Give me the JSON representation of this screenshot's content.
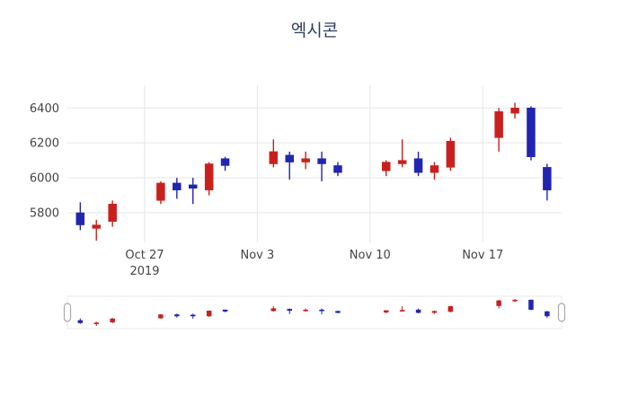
{
  "chart_data": {
    "type": "candlestick",
    "title": "엑시콘",
    "legend": "none",
    "grid": "on",
    "colors": {
      "increasing": "#c9201d",
      "decreasing": "#2125b0",
      "grid": "#e5e5e5",
      "tick_text": "#444444",
      "title_text": "#2a3f5f",
      "slider_handle_stroke": "#a9a9a9",
      "slider_border": "#e8e8e8"
    },
    "x_axis": {
      "range_days": [
        -0.8,
        29.9
      ],
      "ticks": [
        {
          "date": "2019-10-27",
          "label": "Oct 27",
          "sublabel": "2019"
        },
        {
          "date": "2019-11-03",
          "label": "Nov 3"
        },
        {
          "date": "2019-11-10",
          "label": "Nov 10"
        },
        {
          "date": "2019-11-17",
          "label": "Nov 17"
        }
      ]
    },
    "y_axis": {
      "range": [
        5630,
        6530
      ],
      "ticks": [
        5800,
        6000,
        6200,
        6400
      ]
    },
    "candles": [
      {
        "date": "2019-10-23",
        "open": 5800,
        "high": 5860,
        "low": 5700,
        "close": 5730
      },
      {
        "date": "2019-10-24",
        "open": 5710,
        "high": 5760,
        "low": 5640,
        "close": 5730
      },
      {
        "date": "2019-10-25",
        "open": 5750,
        "high": 5870,
        "low": 5720,
        "close": 5850
      },
      {
        "date": "2019-10-28",
        "open": 5870,
        "high": 5980,
        "low": 5850,
        "close": 5970
      },
      {
        "date": "2019-10-29",
        "open": 5970,
        "high": 6000,
        "low": 5880,
        "close": 5930
      },
      {
        "date": "2019-10-30",
        "open": 5960,
        "high": 6000,
        "low": 5850,
        "close": 5940
      },
      {
        "date": "2019-10-31",
        "open": 5930,
        "high": 6090,
        "low": 5900,
        "close": 6080
      },
      {
        "date": "2019-11-01",
        "open": 6110,
        "high": 6120,
        "low": 6040,
        "close": 6070
      },
      {
        "date": "2019-11-04",
        "open": 6080,
        "high": 6220,
        "low": 6060,
        "close": 6150
      },
      {
        "date": "2019-11-05",
        "open": 6130,
        "high": 6150,
        "low": 5990,
        "close": 6090
      },
      {
        "date": "2019-11-06",
        "open": 6090,
        "high": 6150,
        "low": 6050,
        "close": 6110
      },
      {
        "date": "2019-11-07",
        "open": 6110,
        "high": 6150,
        "low": 5980,
        "close": 6080
      },
      {
        "date": "2019-11-08",
        "open": 6070,
        "high": 6090,
        "low": 6010,
        "close": 6030
      },
      {
        "date": "2019-11-11",
        "open": 6040,
        "high": 6100,
        "low": 6010,
        "close": 6090
      },
      {
        "date": "2019-11-12",
        "open": 6080,
        "high": 6220,
        "low": 6060,
        "close": 6100
      },
      {
        "date": "2019-11-13",
        "open": 6110,
        "high": 6150,
        "low": 6010,
        "close": 6030
      },
      {
        "date": "2019-11-14",
        "open": 6030,
        "high": 6090,
        "low": 5990,
        "close": 6070
      },
      {
        "date": "2019-11-15",
        "open": 6060,
        "high": 6230,
        "low": 6040,
        "close": 6210
      },
      {
        "date": "2019-11-18",
        "open": 6230,
        "high": 6400,
        "low": 6150,
        "close": 6380
      },
      {
        "date": "2019-11-19",
        "open": 6370,
        "high": 6430,
        "low": 6340,
        "close": 6400
      },
      {
        "date": "2019-11-20",
        "open": 6400,
        "high": 6410,
        "low": 6100,
        "close": 6120
      },
      {
        "date": "2019-11-21",
        "open": 6060,
        "high": 6080,
        "low": 5870,
        "close": 5930
      }
    ],
    "rangeslider": {
      "visible": true
    }
  }
}
